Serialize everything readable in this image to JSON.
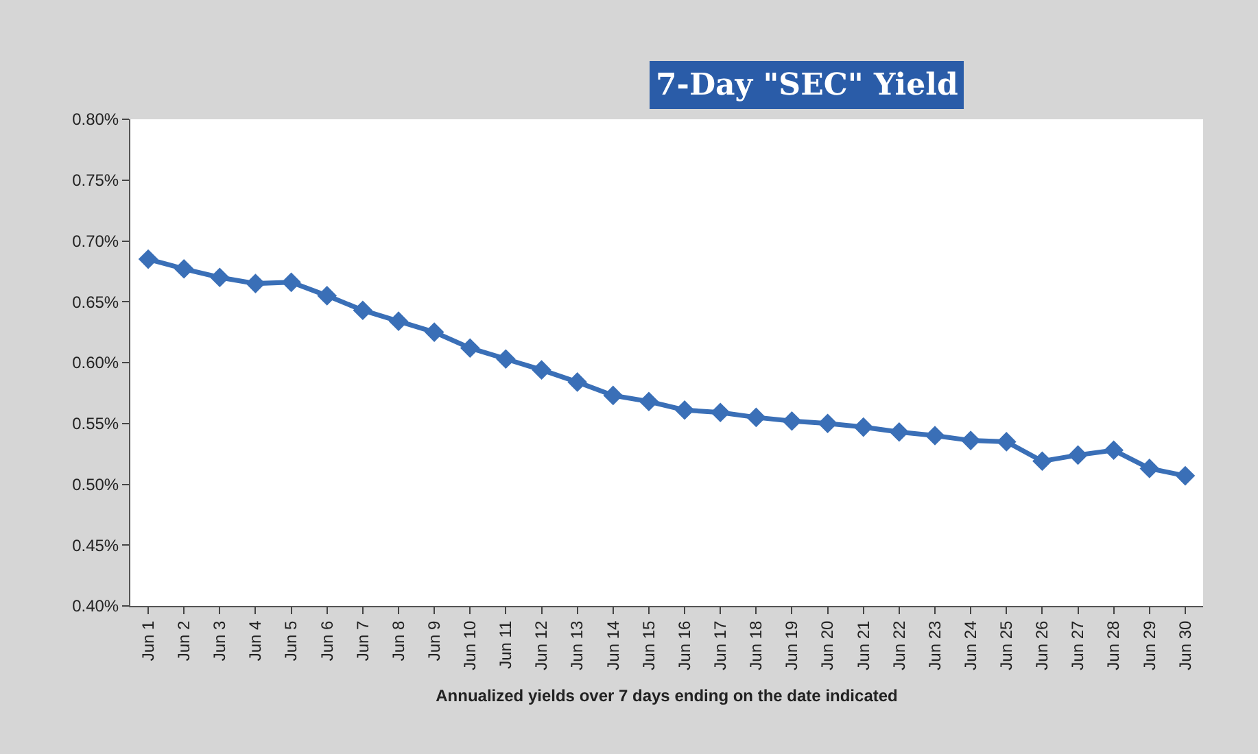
{
  "chart_data": {
    "type": "line",
    "title": "7-Day \"SEC\" Yield",
    "xlabel": "Annualized yields over 7 days ending on the date indicated",
    "categories": [
      "Jun 1",
      "Jun 2",
      "Jun 3",
      "Jun 4",
      "Jun 5",
      "Jun 6",
      "Jun 7",
      "Jun 8",
      "Jun 9",
      "Jun 10",
      "Jun 11",
      "Jun 12",
      "Jun 13",
      "Jun 14",
      "Jun 15",
      "Jun 16",
      "Jun 17",
      "Jun 18",
      "Jun 19",
      "Jun 20",
      "Jun 21",
      "Jun 22",
      "Jun 23",
      "Jun 24",
      "Jun 25",
      "Jun 26",
      "Jun 27",
      "Jun 28",
      "Jun 29",
      "Jun 30"
    ],
    "series": [
      {
        "color": "#3a6fb7",
        "values": [
          0.685,
          0.677,
          0.67,
          0.665,
          0.666,
          0.655,
          0.643,
          0.634,
          0.625,
          0.612,
          0.603,
          0.594,
          0.584,
          0.573,
          0.568,
          0.561,
          0.559,
          0.555,
          0.552,
          0.55,
          0.547,
          0.543,
          0.54,
          0.536,
          0.535,
          0.519,
          0.524,
          0.528,
          0.513,
          0.507
        ]
      }
    ],
    "ylim": [
      0.4,
      0.8
    ],
    "yticks": [
      {
        "value": 0.4,
        "label": "0.40%"
      },
      {
        "value": 0.45,
        "label": "0.45%"
      },
      {
        "value": 0.5,
        "label": "0.50%"
      },
      {
        "value": 0.55,
        "label": "0.55%"
      },
      {
        "value": 0.6,
        "label": "0.60%"
      },
      {
        "value": 0.65,
        "label": "0.65%"
      },
      {
        "value": 0.7,
        "label": "0.70%"
      },
      {
        "value": 0.75,
        "label": "0.75%"
      },
      {
        "value": 0.8,
        "label": "0.80%"
      }
    ],
    "marker": "diamond",
    "line_style": "solid"
  }
}
